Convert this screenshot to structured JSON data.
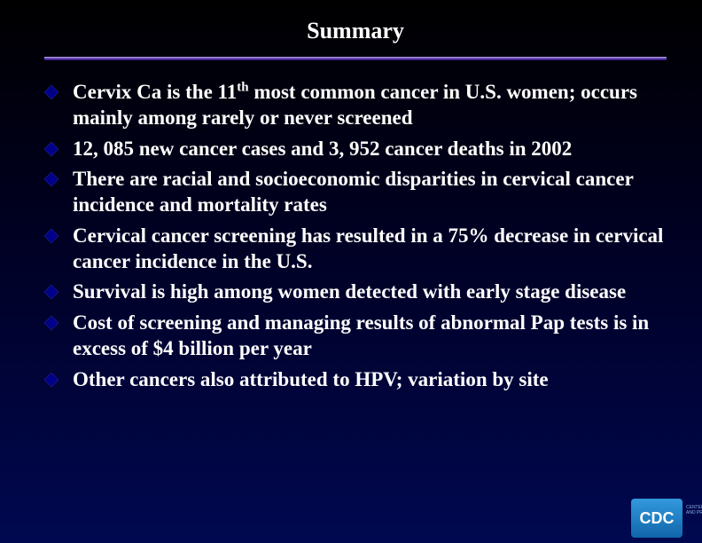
{
  "slide": {
    "title": "Summary",
    "title_color": "#ffffff",
    "title_fontsize": 26,
    "background_gradient": [
      "#000000",
      "#000020",
      "#000850"
    ],
    "divider_color": "#5533aa",
    "bullet_marker": "diamond",
    "bullet_marker_color": "#000088",
    "bullet_text_color": "#ffffff",
    "bullet_fontsize": 23,
    "bullets": [
      {
        "html": "Cervix Ca is the 11<sup>th</sup> most common cancer in U.S. women; occurs mainly among rarely or never screened"
      },
      {
        "html": "12, 085 new cancer cases and 3, 952 cancer deaths in 2002"
      },
      {
        "html": "There are racial and socioeconomic disparities in cervical cancer incidence and mortality rates"
      },
      {
        "html": "Cervical cancer screening has resulted in a 75% decrease in cervical cancer incidence in the U.S."
      },
      {
        "html": "Survival is high among women detected with early stage disease"
      },
      {
        "html": "Cost of screening and managing results of abnormal Pap tests is in excess of $4 billion per year"
      },
      {
        "html": "Other cancers also attributed to HPV; variation by site"
      }
    ]
  },
  "logo": {
    "text": "CDC",
    "subtext": "CENTERS FOR DISEASE CONTROL AND PREVENTION",
    "box_gradient": [
      "#3399dd",
      "#1166aa"
    ],
    "text_color": "#ffffff"
  }
}
